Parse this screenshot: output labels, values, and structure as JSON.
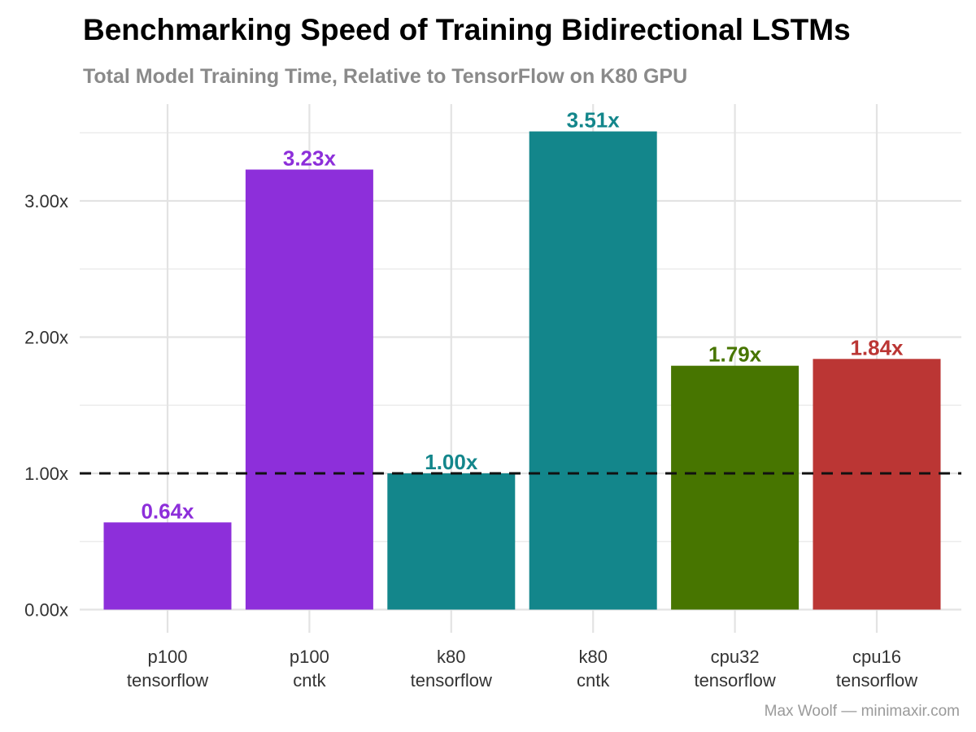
{
  "chart_data": {
    "type": "bar",
    "title": "Benchmarking Speed of Training Bidirectional LSTMs",
    "subtitle": "Total Model Training Time, Relative to TensorFlow on K80 GPU",
    "caption": "Max Woolf — minimaxir.com",
    "xlabel": "",
    "ylabel": "",
    "categories": [
      [
        "p100",
        "tensorflow"
      ],
      [
        "p100",
        "cntk"
      ],
      [
        "k80",
        "tensorflow"
      ],
      [
        "k80",
        "cntk"
      ],
      [
        "cpu32",
        "tensorflow"
      ],
      [
        "cpu16",
        "tensorflow"
      ]
    ],
    "values": [
      0.64,
      3.23,
      1.0,
      3.51,
      1.79,
      1.84
    ],
    "value_labels": [
      "0.64x",
      "3.23x",
      "1.00x",
      "3.51x",
      "1.79x",
      "1.84x"
    ],
    "colors": [
      "#8d2fda",
      "#8d2fda",
      "#13868b",
      "#13868b",
      "#477500",
      "#bb3634"
    ],
    "ylim": [
      0,
      3.7
    ],
    "y_ticks": [
      0,
      1,
      2,
      3
    ],
    "y_tick_labels": [
      "0.00x",
      "1.00x",
      "2.00x",
      "3.00x"
    ],
    "reference_line": 1.0,
    "grid": true,
    "legend": "none"
  }
}
